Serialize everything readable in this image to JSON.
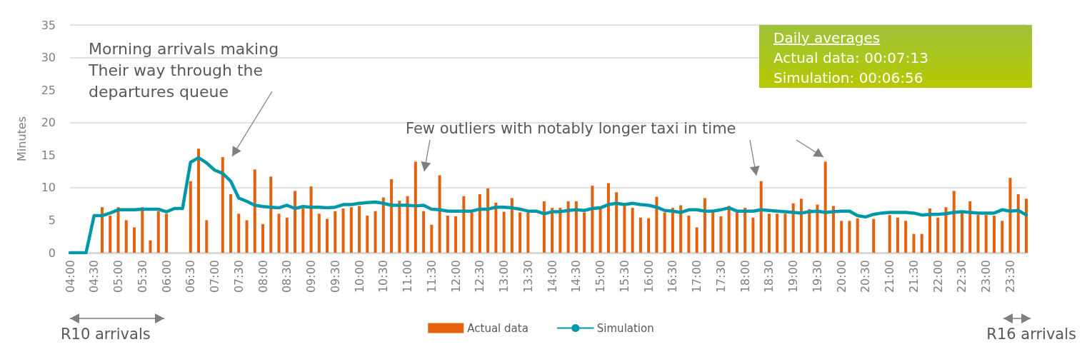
{
  "chart_data": {
    "type": "bar",
    "ylabel": "Minutes",
    "categories": [
      "04:00",
      null,
      null,
      "04:30",
      null,
      null,
      "05:00",
      null,
      null,
      "05:30",
      null,
      null,
      "06:00",
      null,
      null,
      "06:30",
      null,
      null,
      "07:00",
      null,
      null,
      "07:30",
      null,
      null,
      "08:00",
      null,
      null,
      "08:30",
      null,
      null,
      "09:00",
      null,
      null,
      "09:30",
      null,
      null,
      "10:00",
      null,
      null,
      "10:30",
      null,
      null,
      "11:00",
      null,
      null,
      "11:30",
      null,
      null,
      "12:00",
      null,
      null,
      "12:30",
      null,
      null,
      "13:00",
      null,
      null,
      "13:30",
      null,
      null,
      "14:00",
      null,
      null,
      "14:30",
      null,
      null,
      "15:00",
      null,
      null,
      "15:30",
      null,
      null,
      "16:00",
      null,
      null,
      "16:30",
      null,
      null,
      "17:00",
      null,
      null,
      "17:30",
      null,
      null,
      "18:00",
      null,
      null,
      "18:30",
      null,
      null,
      "19:00",
      null,
      null,
      "19:30",
      null,
      null,
      "20:00",
      null,
      null,
      "20:30",
      null,
      null,
      "21:00",
      null,
      null,
      "21:30",
      null,
      null,
      "22:00",
      null,
      null,
      "22:30",
      null,
      null,
      "23:00",
      null,
      null,
      "23:30",
      null,
      null
    ],
    "series": [
      {
        "name": "Actual data",
        "color": "#e4610e",
        "values": [
          null,
          null,
          null,
          null,
          7.0,
          5.7,
          7.0,
          5.0,
          3.9,
          7.0,
          1.9,
          6.4,
          6.0,
          null,
          null,
          11.0,
          16.0,
          5.0,
          null,
          14.7,
          9.0,
          6.0,
          5.0,
          12.8,
          4.4,
          11.7,
          6.0,
          5.4,
          9.5,
          6.8,
          10.2,
          6.0,
          5.2,
          6.4,
          6.8,
          7.0,
          7.2,
          5.7,
          6.4,
          8.5,
          11.3,
          8.0,
          8.7,
          14.0,
          6.4,
          4.3,
          11.9,
          5.7,
          5.6,
          8.7,
          6.2,
          9.0,
          9.9,
          7.7,
          6.3,
          8.4,
          6.2,
          6.2,
          null,
          7.9,
          6.9,
          6.9,
          7.9,
          7.9,
          6.2,
          10.3,
          6.7,
          10.7,
          9.3,
          7.2,
          6.9,
          5.4,
          5.3,
          8.6,
          6.2,
          6.9,
          7.3,
          5.7,
          3.9,
          8.4,
          6.2,
          5.6,
          7.2,
          6.2,
          6.9,
          5.4,
          11.0,
          6.0,
          6.0,
          6.0,
          7.6,
          8.3,
          6.7,
          7.4,
          14.0,
          7.2,
          4.9,
          4.9,
          5.3,
          null,
          5.2,
          null,
          5.8,
          5.4,
          4.9,
          2.9,
          2.9,
          6.8,
          5.4,
          7.0,
          9.5,
          6.2,
          7.9,
          5.8,
          5.8,
          5.7,
          4.9,
          11.5,
          9.0,
          8.3
        ]
      },
      {
        "name": "Simulation",
        "type": "line",
        "color": "#0098a8",
        "values": [
          0,
          0,
          0,
          5.7,
          5.7,
          6.1,
          6.6,
          6.6,
          6.6,
          6.7,
          6.7,
          6.7,
          6.3,
          6.8,
          6.8,
          13.9,
          14.6,
          13.8,
          12.7,
          12.2,
          11.0,
          8.4,
          7.9,
          7.3,
          7.1,
          7.0,
          6.9,
          7.3,
          6.8,
          7.1,
          7.0,
          7.0,
          6.9,
          7.0,
          7.4,
          7.4,
          7.6,
          7.7,
          7.8,
          7.6,
          7.3,
          7.3,
          7.3,
          7.2,
          7.3,
          6.7,
          6.6,
          6.4,
          6.4,
          6.4,
          6.4,
          6.7,
          6.7,
          7.0,
          7.0,
          6.9,
          6.7,
          6.4,
          6.4,
          6.0,
          6.3,
          6.3,
          6.5,
          6.6,
          6.5,
          6.8,
          6.9,
          7.4,
          7.6,
          7.4,
          7.6,
          7.4,
          7.3,
          7.0,
          6.5,
          6.4,
          6.2,
          6.6,
          6.6,
          6.4,
          6.4,
          6.6,
          6.9,
          6.4,
          6.4,
          6.4,
          6.6,
          6.5,
          6.4,
          6.3,
          6.2,
          6.1,
          6.3,
          6.4,
          6.2,
          6.3,
          6.4,
          6.4,
          5.7,
          5.5,
          5.9,
          6.1,
          6.2,
          6.2,
          6.2,
          6.1,
          5.8,
          5.9,
          5.9,
          6.0,
          6.2,
          6.3,
          6.2,
          6.1,
          6.1,
          6.1,
          6.6,
          6.4,
          6.5,
          5.8
        ]
      }
    ],
    "ylim": [
      0,
      35
    ],
    "yticks": [
      0,
      5,
      10,
      15,
      20,
      25,
      30,
      35
    ],
    "grid": "y",
    "legend": "bottom",
    "marker": "none",
    "line_style": "solid",
    "annotations": [
      "Morning arrivals making\nTheir way through the\ndepartures queue",
      "Few outliers with notably longer taxi in time",
      "Daily averages",
      "Actual data: 00:07:13",
      "Simulation: 00:06:56",
      "R10 arrivals",
      "R16 arrivals"
    ]
  }
}
